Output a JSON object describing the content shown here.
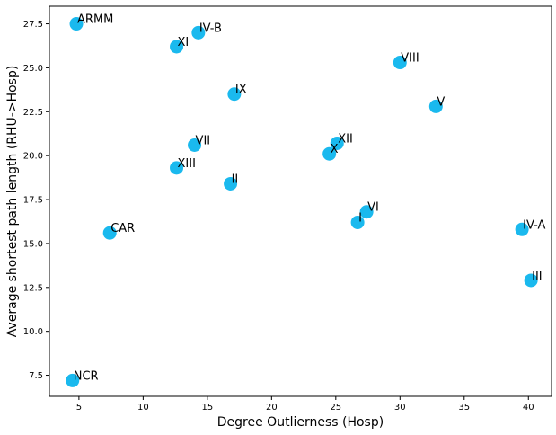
{
  "chart_data": {
    "type": "scatter",
    "title": "",
    "xlabel": "Degree Outlierness (Hosp)",
    "ylabel": "Average shortest path length (RHU->Hosp)",
    "xlim": [
      2.7,
      41.8
    ],
    "ylim": [
      6.3,
      28.5
    ],
    "xticks": [
      5,
      10,
      15,
      20,
      25,
      30,
      35,
      40
    ],
    "xtick_labels": [
      "5",
      "10",
      "15",
      "20",
      "25",
      "30",
      "35",
      "40"
    ],
    "yticks": [
      7.5,
      10.0,
      12.5,
      15.0,
      17.5,
      20.0,
      22.5,
      25.0,
      27.5
    ],
    "ytick_labels": [
      "7.5",
      "10.0",
      "12.5",
      "15.0",
      "17.5",
      "20.0",
      "22.5",
      "25.0",
      "27.5"
    ],
    "grid": false,
    "marker_color": "#1ab9ee",
    "points": [
      {
        "label": "ARMM",
        "x": 4.8,
        "y": 27.5
      },
      {
        "label": "IV-B",
        "x": 14.3,
        "y": 27.0
      },
      {
        "label": "XI",
        "x": 12.6,
        "y": 26.2
      },
      {
        "label": "VIII",
        "x": 30.0,
        "y": 25.3
      },
      {
        "label": "IX",
        "x": 17.1,
        "y": 23.5
      },
      {
        "label": "V",
        "x": 32.8,
        "y": 22.8
      },
      {
        "label": "VII",
        "x": 14.0,
        "y": 20.6
      },
      {
        "label": "XII",
        "x": 25.1,
        "y": 20.7
      },
      {
        "label": "X",
        "x": 24.5,
        "y": 20.1
      },
      {
        "label": "XIII",
        "x": 12.6,
        "y": 19.3
      },
      {
        "label": "II",
        "x": 16.8,
        "y": 18.4
      },
      {
        "label": "VI",
        "x": 27.4,
        "y": 16.8
      },
      {
        "label": "I",
        "x": 26.7,
        "y": 16.2
      },
      {
        "label": "IV-A",
        "x": 39.5,
        "y": 15.8
      },
      {
        "label": "CAR",
        "x": 7.4,
        "y": 15.6
      },
      {
        "label": "III",
        "x": 40.2,
        "y": 12.9
      },
      {
        "label": "NCR",
        "x": 4.5,
        "y": 7.2
      }
    ]
  }
}
